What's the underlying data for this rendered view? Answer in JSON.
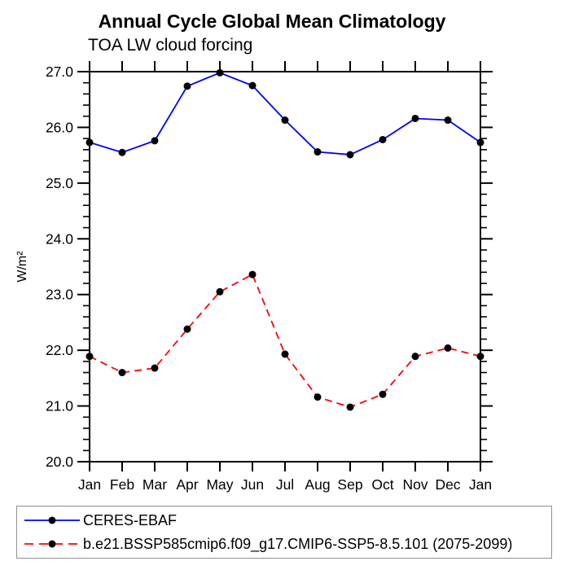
{
  "chart_data": {
    "type": "line",
    "title": "Annual Cycle Global Mean Climatology",
    "subtitle": "TOA LW cloud forcing",
    "ylabel": "W/m²",
    "xlabel": "",
    "categories": [
      "Jan",
      "Feb",
      "Mar",
      "Apr",
      "May",
      "Jun",
      "Jul",
      "Aug",
      "Sep",
      "Oct",
      "Nov",
      "Dec",
      "Jan"
    ],
    "ylim": [
      20.0,
      27.0
    ],
    "y_major_tick_step": 1.0,
    "y_minor_tick_step": 0.2,
    "y_tick_labels": [
      "20.0",
      "21.0",
      "22.0",
      "23.0",
      "24.0",
      "25.0",
      "26.0",
      "27.0"
    ],
    "grid": false,
    "legend_position": "bottom-left-box",
    "series": [
      {
        "name": "CERES-EBAF",
        "color": "#0000ff",
        "line_style": "solid",
        "marker": "filled-circle",
        "marker_color": "#000000",
        "values": [
          25.73,
          25.55,
          25.76,
          26.74,
          26.98,
          26.75,
          26.13,
          25.56,
          25.51,
          25.78,
          26.16,
          26.13,
          25.73
        ]
      },
      {
        "name": "b.e21.BSSP585cmip6.f09_g17.CMIP6-SSP5-8.5.101 (2075-2099)",
        "color": "#ff0000",
        "line_style": "dashed",
        "marker": "filled-circle",
        "marker_color": "#000000",
        "values": [
          21.89,
          21.6,
          21.68,
          22.38,
          23.05,
          23.36,
          21.93,
          21.16,
          20.98,
          21.21,
          21.89,
          22.04,
          21.89
        ]
      }
    ]
  }
}
